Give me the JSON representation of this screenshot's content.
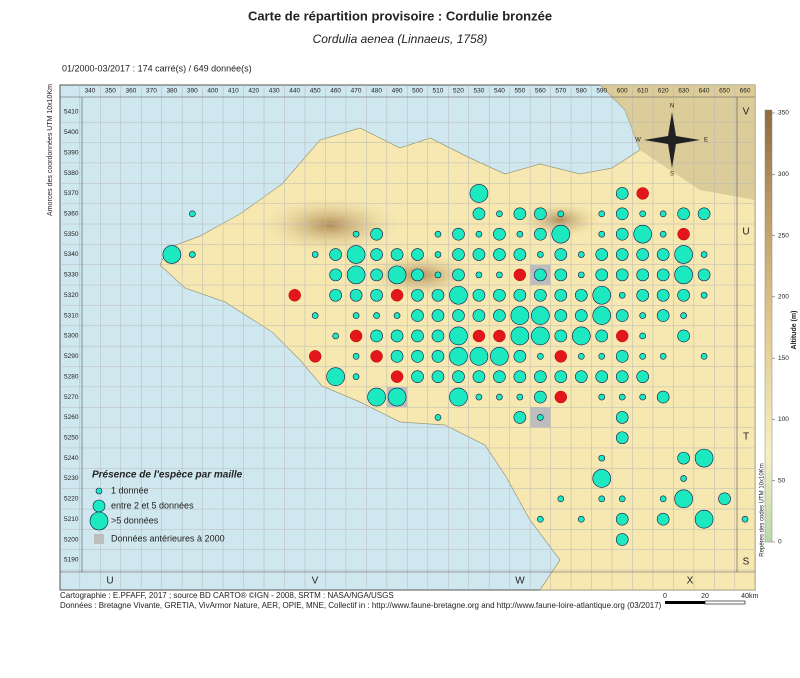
{
  "header": {
    "title": "Carte de répartition provisoire :  Cordulie bronzée",
    "subtitle": "Cordulia aenea (Linnaeus, 1758)",
    "period": "01/2000-03/2017 :  174 carré(s) / 649 donnée(s)"
  },
  "map": {
    "left_axis_title": "Amorces des coordonnées UTM 10x10Km",
    "right_axis_title": "Repères des codes UTM 10x10Km",
    "eastings": [
      340,
      350,
      360,
      370,
      380,
      390,
      400,
      410,
      420,
      430,
      440,
      450,
      460,
      470,
      480,
      490,
      500,
      510,
      520,
      530,
      540,
      550,
      560,
      570,
      580,
      590,
      600,
      610,
      620,
      630,
      640,
      650,
      660
    ],
    "northings": [
      5410,
      5400,
      5390,
      5380,
      5370,
      5360,
      5350,
      5340,
      5330,
      5320,
      5310,
      5300,
      5290,
      5280,
      5270,
      5260,
      5250,
      5240,
      5230,
      5220,
      5210,
      5200,
      5190
    ],
    "bottom_codes": [
      "U",
      "V",
      "W",
      "X"
    ],
    "right_codes": [
      "V",
      "U",
      "T",
      "S"
    ],
    "compass": [
      "N",
      "S",
      "E",
      "W"
    ],
    "rows": [
      {
        "n": 5370,
        "cells": [
          [
            530,
            2
          ],
          [
            600,
            1
          ]
        ],
        "red": [
          610
        ],
        "grey": []
      },
      {
        "n": 5360,
        "cells": [
          [
            390,
            0
          ],
          [
            530,
            1
          ],
          [
            540,
            0
          ],
          [
            550,
            1
          ],
          [
            560,
            1
          ],
          [
            570,
            0
          ],
          [
            590,
            0
          ],
          [
            600,
            1
          ],
          [
            610,
            0
          ],
          [
            620,
            0
          ],
          [
            630,
            1
          ],
          [
            640,
            1
          ]
        ],
        "red": [],
        "grey": []
      },
      {
        "n": 5350,
        "cells": [
          [
            470,
            0
          ],
          [
            480,
            1
          ],
          [
            510,
            0
          ],
          [
            520,
            1
          ],
          [
            530,
            0
          ],
          [
            540,
            1
          ],
          [
            550,
            0
          ],
          [
            560,
            1
          ],
          [
            570,
            2
          ],
          [
            590,
            0
          ],
          [
            600,
            1
          ],
          [
            610,
            2
          ],
          [
            620,
            0
          ]
        ],
        "red": [
          630
        ],
        "grey": []
      },
      {
        "n": 5340,
        "cells": [
          [
            380,
            2
          ],
          [
            390,
            0
          ],
          [
            450,
            0
          ],
          [
            460,
            1
          ],
          [
            470,
            2
          ],
          [
            480,
            1
          ],
          [
            490,
            1
          ],
          [
            500,
            1
          ],
          [
            510,
            0
          ],
          [
            520,
            1
          ],
          [
            530,
            1
          ],
          [
            540,
            1
          ],
          [
            550,
            1
          ],
          [
            560,
            0
          ],
          [
            570,
            1
          ],
          [
            580,
            0
          ],
          [
            590,
            1
          ],
          [
            600,
            1
          ],
          [
            610,
            1
          ],
          [
            620,
            1
          ],
          [
            630,
            2
          ],
          [
            640,
            0
          ]
        ],
        "red": [],
        "grey": []
      },
      {
        "n": 5330,
        "cells": [
          [
            460,
            1
          ],
          [
            470,
            2
          ],
          [
            480,
            1
          ],
          [
            490,
            2
          ],
          [
            500,
            1
          ],
          [
            510,
            0
          ],
          [
            520,
            1
          ],
          [
            530,
            0
          ],
          [
            540,
            0
          ],
          [
            560,
            1
          ],
          [
            570,
            1
          ],
          [
            580,
            0
          ],
          [
            590,
            1
          ],
          [
            600,
            1
          ],
          [
            610,
            1
          ],
          [
            620,
            1
          ],
          [
            630,
            2
          ],
          [
            640,
            1
          ]
        ],
        "red": [
          550
        ],
        "grey": [
          560
        ]
      },
      {
        "n": 5320,
        "cells": [
          [
            460,
            1
          ],
          [
            470,
            1
          ],
          [
            480,
            1
          ],
          [
            500,
            1
          ],
          [
            510,
            1
          ],
          [
            520,
            2
          ],
          [
            530,
            1
          ],
          [
            540,
            1
          ],
          [
            550,
            1
          ],
          [
            560,
            1
          ],
          [
            570,
            1
          ],
          [
            580,
            1
          ],
          [
            590,
            2
          ],
          [
            600,
            0
          ],
          [
            610,
            1
          ],
          [
            620,
            1
          ],
          [
            630,
            1
          ],
          [
            640,
            0
          ]
        ],
        "red": [
          440,
          490
        ],
        "grey": []
      },
      {
        "n": 5310,
        "cells": [
          [
            450,
            0
          ],
          [
            470,
            0
          ],
          [
            480,
            0
          ],
          [
            490,
            0
          ],
          [
            500,
            1
          ],
          [
            510,
            1
          ],
          [
            520,
            1
          ],
          [
            530,
            1
          ],
          [
            540,
            1
          ],
          [
            550,
            2
          ],
          [
            560,
            2
          ],
          [
            570,
            1
          ],
          [
            580,
            1
          ],
          [
            590,
            2
          ],
          [
            600,
            1
          ],
          [
            610,
            0
          ],
          [
            620,
            1
          ],
          [
            630,
            0
          ]
        ],
        "red": [],
        "grey": []
      },
      {
        "n": 5300,
        "cells": [
          [
            460,
            0
          ],
          [
            480,
            1
          ],
          [
            490,
            1
          ],
          [
            500,
            1
          ],
          [
            510,
            1
          ],
          [
            520,
            2
          ],
          [
            550,
            2
          ],
          [
            560,
            2
          ],
          [
            570,
            1
          ],
          [
            580,
            2
          ],
          [
            590,
            1
          ],
          [
            610,
            0
          ],
          [
            630,
            1
          ]
        ],
        "red": [
          470,
          530,
          540,
          600
        ],
        "grey": []
      },
      {
        "n": 5290,
        "cells": [
          [
            470,
            0
          ],
          [
            490,
            1
          ],
          [
            500,
            1
          ],
          [
            510,
            1
          ],
          [
            520,
            2
          ],
          [
            530,
            2
          ],
          [
            540,
            2
          ],
          [
            550,
            1
          ],
          [
            560,
            0
          ],
          [
            580,
            0
          ],
          [
            590,
            0
          ],
          [
            600,
            1
          ],
          [
            610,
            0
          ],
          [
            620,
            0
          ],
          [
            640,
            0
          ]
        ],
        "red": [
          450,
          480,
          570
        ],
        "grey": []
      },
      {
        "n": 5280,
        "cells": [
          [
            460,
            2
          ],
          [
            470,
            0
          ],
          [
            500,
            1
          ],
          [
            510,
            1
          ],
          [
            520,
            1
          ],
          [
            530,
            1
          ],
          [
            540,
            1
          ],
          [
            550,
            1
          ],
          [
            560,
            1
          ],
          [
            570,
            1
          ],
          [
            580,
            1
          ],
          [
            590,
            1
          ],
          [
            600,
            1
          ],
          [
            610,
            1
          ]
        ],
        "red": [
          490
        ],
        "grey": []
      },
      {
        "n": 5270,
        "cells": [
          [
            480,
            2
          ],
          [
            490,
            2
          ],
          [
            520,
            2
          ],
          [
            530,
            0
          ],
          [
            540,
            0
          ],
          [
            550,
            0
          ],
          [
            560,
            1
          ],
          [
            590,
            0
          ],
          [
            600,
            0
          ],
          [
            610,
            0
          ],
          [
            620,
            1
          ]
        ],
        "red": [
          570
        ],
        "grey": [
          490
        ]
      },
      {
        "n": 5260,
        "cells": [
          [
            510,
            0
          ],
          [
            550,
            1
          ],
          [
            560,
            0
          ],
          [
            600,
            1
          ]
        ],
        "red": [],
        "grey": [
          560
        ]
      },
      {
        "n": 5250,
        "cells": [
          [
            600,
            1
          ]
        ],
        "red": [],
        "grey": []
      },
      {
        "n": 5240,
        "cells": [
          [
            590,
            0
          ],
          [
            630,
            1
          ],
          [
            640,
            2
          ]
        ],
        "red": [],
        "grey": []
      },
      {
        "n": 5230,
        "cells": [
          [
            590,
            2
          ],
          [
            630,
            0
          ]
        ],
        "red": [],
        "grey": []
      },
      {
        "n": 5220,
        "cells": [
          [
            570,
            0
          ],
          [
            590,
            0
          ],
          [
            600,
            0
          ],
          [
            620,
            0
          ],
          [
            630,
            2
          ],
          [
            650,
            1
          ]
        ],
        "red": [],
        "grey": []
      },
      {
        "n": 5210,
        "cells": [
          [
            560,
            0
          ],
          [
            580,
            0
          ],
          [
            600,
            1
          ],
          [
            620,
            1
          ],
          [
            640,
            2
          ],
          [
            660,
            0
          ]
        ],
        "red": [],
        "grey": []
      },
      {
        "n": 5200,
        "cells": [
          [
            600,
            1
          ]
        ],
        "red": [],
        "grey": []
      }
    ]
  },
  "legend": {
    "title": "Présence de l'espèce par maille",
    "items": [
      "1 donnée",
      "entre 2 et 5 données",
      ">5 données"
    ],
    "grey": "Données antérieures à 2000"
  },
  "altitude": {
    "title": "Altitude (m)",
    "ticks": [
      0,
      50,
      100,
      150,
      200,
      250,
      300,
      350
    ]
  },
  "scale": {
    "ticks": [
      0,
      20,
      40
    ],
    "unit": "km"
  },
  "footer": {
    "credits": "Cartographie : E.PFAFF, 2017 ; source BD CARTO® ©IGN - 2008, SRTM : NASA/NGA/USGS",
    "sources": "Données : Bretagne Vivante, GRETIA, VivArmor Nature, AER, OPIE, MNE, Collectif in : http://www.faune-bretagne.org and http://www.faune-loire-atlantique.org (03/2017)"
  }
}
